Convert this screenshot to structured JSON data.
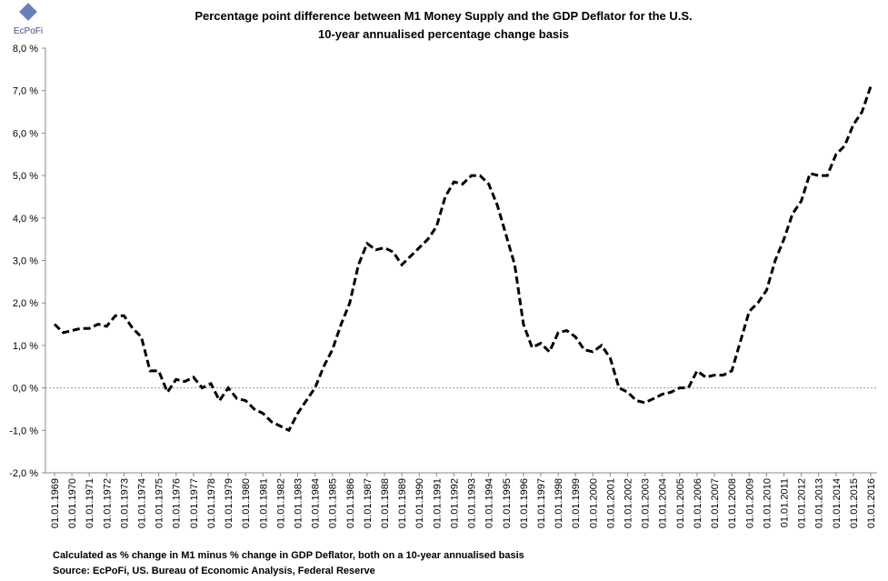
{
  "chart_data": {
    "type": "line",
    "logo": "EcPoFi",
    "title": "Percentage point difference between M1 Money Supply and the GDP Deflator for the U.S.",
    "subtitle": "10-year annualised percentage change basis",
    "notes": [
      "Calculated as % change in M1 minus % change in GDP Deflator, both on a 10-year annualised basis",
      "Source: EcPoFi,  US. Bureau of Economic Analysis, Federal Reserve"
    ],
    "categories": [
      "01.01.1969",
      null,
      "01.01.1970",
      null,
      "01.01.1971",
      null,
      "01.01.1972",
      null,
      "01.01.1973",
      null,
      "01.01.1974",
      null,
      "01.01.1975",
      null,
      "01.01.1976",
      null,
      "01.01.1977",
      null,
      "01.01.1978",
      null,
      "01.01.1979",
      null,
      "01.01.1980",
      null,
      "01.01.1981",
      null,
      "01.01.1982",
      null,
      "01.01.1983",
      null,
      "01.01.1984",
      null,
      "01.01.1985",
      null,
      "01.01.1986",
      null,
      "01.01.1987",
      null,
      "01.01.1988",
      null,
      "01.01.1989",
      null,
      "01.01.1990",
      null,
      "01.01.1991",
      null,
      "01.01.1992",
      null,
      "01.01.1993",
      null,
      "01.01.1994",
      null,
      "01.01.1995",
      null,
      "01.01.1996",
      null,
      "01.01.1997",
      null,
      "01.01.1998",
      null,
      "01.01.1999",
      null,
      "01.01.2000",
      null,
      "01.01.2001",
      null,
      "01.01.2002",
      null,
      "01.01.2003",
      null,
      "01.01.2004",
      null,
      "01.01.2005",
      null,
      "01.01.2006",
      null,
      "01.01.2007",
      null,
      "01.01.2008",
      null,
      "01.01.2009",
      null,
      "01.01.2010",
      null,
      "01.01.2011",
      null,
      "01.01.2012",
      null,
      "01.01.2013",
      null,
      "01.01.2014",
      null,
      "01.01.2015",
      null,
      "01.01.2016"
    ],
    "series": [
      {
        "color": "#000000",
        "values": [
          1.5,
          1.3,
          1.35,
          1.4,
          1.4,
          1.5,
          1.45,
          1.7,
          1.7,
          1.4,
          1.2,
          0.4,
          0.4,
          -0.1,
          0.2,
          0.15,
          0.25,
          0.0,
          0.1,
          -0.3,
          0.0,
          -0.25,
          -0.3,
          -0.5,
          -0.6,
          -0.8,
          -0.9,
          -1.0,
          -0.6,
          -0.3,
          0.0,
          0.5,
          0.9,
          1.5,
          2.0,
          2.9,
          3.4,
          3.25,
          3.3,
          3.2,
          2.9,
          3.1,
          3.3,
          3.5,
          3.8,
          4.5,
          4.85,
          4.8,
          5.0,
          5.0,
          4.8,
          4.3,
          3.6,
          2.9,
          1.5,
          0.95,
          1.05,
          0.85,
          1.3,
          1.35,
          1.2,
          0.9,
          0.85,
          1.0,
          0.7,
          0.0,
          -0.1,
          -0.3,
          -0.35,
          -0.25,
          -0.15,
          -0.1,
          0.0,
          0.0,
          0.4,
          0.25,
          0.3,
          0.3,
          0.4,
          1.1,
          1.8,
          2.0,
          2.3,
          3.0,
          3.5,
          4.1,
          4.4,
          5.05,
          5.0,
          5.0,
          5.5,
          5.7,
          6.2,
          6.5,
          7.1
        ]
      }
    ],
    "ylim": [
      -2,
      8
    ],
    "yticks": [
      {
        "value": -2,
        "label": "-2,0 %"
      },
      {
        "value": -1,
        "label": "-1,0 %"
      },
      {
        "value": 0,
        "label": "0,0 %"
      },
      {
        "value": 1,
        "label": "1,0 %"
      },
      {
        "value": 2,
        "label": "2,0 %"
      },
      {
        "value": 3,
        "label": "3,0 %"
      },
      {
        "value": 4,
        "label": "4,0 %"
      },
      {
        "value": 5,
        "label": "5,0 %"
      },
      {
        "value": 6,
        "label": "6,0 %"
      },
      {
        "value": 7,
        "label": "7,0 %"
      },
      {
        "value": 8,
        "label": "8,0 %"
      }
    ],
    "line_style": "dashed"
  }
}
